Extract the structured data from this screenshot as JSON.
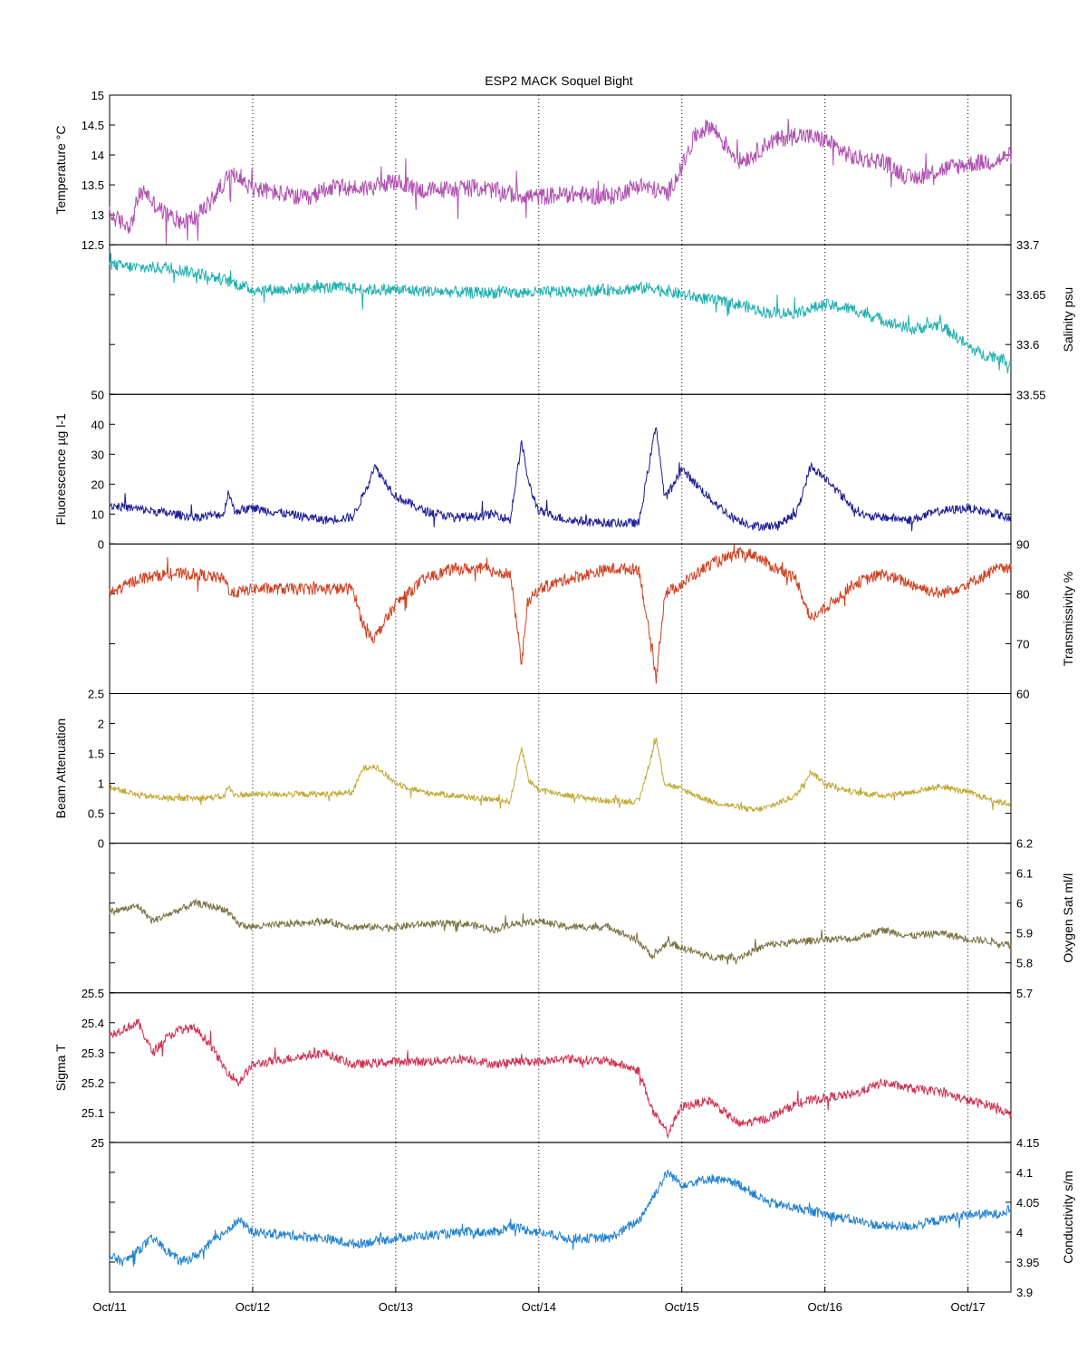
{
  "title": "ESP2 MACK  Soquel Bight",
  "x_axis": {
    "ticks": [
      "Oct/11",
      "Oct/12",
      "Oct/13",
      "Oct/14",
      "Oct/15",
      "Oct/16",
      "Oct/17"
    ],
    "range_days": [
      0,
      6.3
    ],
    "vertical_dotted_gridlines": true
  },
  "chart_data": [
    {
      "type": "line",
      "key": "temperature",
      "ylabel": "Temperature °C",
      "axis_side": "left",
      "ylim": [
        12.5,
        15
      ],
      "ticks": [
        12.5,
        13,
        13.5,
        14,
        14.5,
        15
      ],
      "color": "#b050b0",
      "x": [
        0,
        0.08,
        0.15,
        0.2,
        0.25,
        0.3,
        0.4,
        0.5,
        0.6,
        0.7,
        0.8,
        0.9,
        0.95,
        1.0,
        1.2,
        1.4,
        1.5,
        1.8,
        2.0,
        2.2,
        2.5,
        2.6,
        2.8,
        3.0,
        3.2,
        3.5,
        3.7,
        3.9,
        4.0,
        4.1,
        4.2,
        4.4,
        4.5,
        4.6,
        4.8,
        5.0,
        5.2,
        5.4,
        5.6,
        5.8,
        6.0,
        6.2,
        6.3
      ],
      "values": [
        13.0,
        12.88,
        12.82,
        13.3,
        13.4,
        13.2,
        13.0,
        12.9,
        12.95,
        13.2,
        13.55,
        13.7,
        13.5,
        13.45,
        13.35,
        13.25,
        13.45,
        13.45,
        13.55,
        13.4,
        13.45,
        13.45,
        13.35,
        13.3,
        13.35,
        13.3,
        13.5,
        13.35,
        13.8,
        14.35,
        14.5,
        13.9,
        14.0,
        14.2,
        14.35,
        14.25,
        13.95,
        13.9,
        13.6,
        13.75,
        13.85,
        13.9,
        14.0
      ],
      "noise": 0.15
    },
    {
      "type": "line",
      "key": "salinity",
      "ylabel": "Salinity psu",
      "axis_side": "right",
      "ylim": [
        33.55,
        33.7
      ],
      "ticks": [
        33.55,
        33.6,
        33.65,
        33.7
      ],
      "color": "#20b0b0",
      "x": [
        0,
        0.2,
        0.4,
        0.6,
        0.8,
        1.0,
        1.2,
        1.4,
        1.6,
        1.8,
        2.0,
        2.5,
        3.0,
        3.5,
        3.8,
        4.0,
        4.2,
        4.4,
        4.6,
        4.8,
        5.0,
        5.2,
        5.4,
        5.6,
        5.8,
        5.9,
        6.0,
        6.1,
        6.2,
        6.3
      ],
      "values": [
        33.68,
        33.677,
        33.677,
        33.672,
        33.665,
        33.655,
        33.655,
        33.657,
        33.657,
        33.655,
        33.655,
        33.652,
        33.652,
        33.655,
        33.657,
        33.65,
        33.645,
        33.64,
        33.632,
        33.632,
        33.64,
        33.635,
        33.625,
        33.615,
        33.62,
        33.61,
        33.598,
        33.59,
        33.588,
        33.582
      ],
      "noise": 0.006
    },
    {
      "type": "line",
      "key": "fluorescence",
      "ylabel": "Fluorescence µg l-1",
      "axis_side": "left",
      "ylim": [
        0,
        50
      ],
      "ticks": [
        0,
        10,
        20,
        30,
        40,
        50
      ],
      "color": "#1c1c96",
      "x": [
        0,
        0.3,
        0.6,
        0.8,
        0.83,
        0.87,
        1.0,
        1.5,
        1.7,
        1.77,
        1.85,
        2.0,
        2.2,
        2.4,
        2.5,
        2.7,
        2.8,
        2.88,
        2.93,
        3.0,
        3.2,
        3.5,
        3.7,
        3.82,
        3.88,
        4.0,
        4.2,
        4.35,
        4.5,
        4.65,
        4.8,
        4.9,
        5.0,
        5.2,
        5.3,
        5.4,
        5.6,
        5.8,
        6.0,
        6.2,
        6.3
      ],
      "values": [
        13,
        11,
        9,
        10,
        18,
        11,
        12,
        8,
        9,
        16,
        26,
        16,
        11,
        9,
        9,
        10,
        8,
        34,
        20,
        11,
        8,
        7,
        7,
        40,
        15,
        25,
        15,
        9,
        6,
        6,
        10,
        26,
        22,
        12,
        9,
        9,
        8,
        11,
        12,
        10,
        8
      ],
      "noise": 1.5
    },
    {
      "type": "line",
      "key": "transmissivity",
      "ylabel": "Transmissivity %",
      "axis_side": "right",
      "ylim": [
        60,
        90
      ],
      "ticks": [
        60,
        70,
        80,
        90
      ],
      "color": "#d04020",
      "x": [
        0,
        0.2,
        0.4,
        0.6,
        0.8,
        0.85,
        1.0,
        1.5,
        1.7,
        1.77,
        1.85,
        2.0,
        2.2,
        2.4,
        2.6,
        2.8,
        2.88,
        2.92,
        3.0,
        3.2,
        3.5,
        3.7,
        3.82,
        3.88,
        4.0,
        4.2,
        4.4,
        4.5,
        4.6,
        4.8,
        4.9,
        5.0,
        5.2,
        5.4,
        5.6,
        5.8,
        6.0,
        6.2,
        6.3
      ],
      "values": [
        80,
        83,
        84,
        84,
        83,
        80,
        81,
        81,
        81,
        74,
        71,
        78,
        83,
        85,
        85,
        84,
        66,
        78,
        81,
        83,
        85,
        85,
        63,
        80,
        82,
        86,
        88,
        88,
        86,
        83,
        75,
        77,
        82,
        84,
        82,
        80,
        82,
        85,
        85
      ],
      "noise": 1.2
    },
    {
      "type": "line",
      "key": "beam_attenuation",
      "ylabel": "Beam Attenuation",
      "axis_side": "left",
      "ylim": [
        0,
        2.5
      ],
      "ticks": [
        0,
        0.5,
        1,
        1.5,
        2,
        2.5
      ],
      "color": "#c0a830",
      "x": [
        0,
        0.2,
        0.4,
        0.6,
        0.8,
        0.83,
        0.87,
        1.0,
        1.5,
        1.7,
        1.77,
        1.85,
        2.0,
        2.2,
        2.4,
        2.6,
        2.8,
        2.88,
        2.93,
        3.0,
        3.2,
        3.5,
        3.7,
        3.82,
        3.88,
        4.0,
        4.2,
        4.4,
        4.5,
        4.6,
        4.8,
        4.9,
        5.0,
        5.2,
        5.4,
        5.6,
        5.8,
        6.0,
        6.2,
        6.3
      ],
      "values": [
        0.95,
        0.8,
        0.75,
        0.75,
        0.78,
        0.95,
        0.8,
        0.82,
        0.82,
        0.85,
        1.25,
        1.3,
        1.0,
        0.85,
        0.8,
        0.75,
        0.7,
        1.6,
        1.05,
        0.9,
        0.8,
        0.7,
        0.7,
        1.75,
        1.0,
        0.9,
        0.7,
        0.6,
        0.55,
        0.6,
        0.8,
        1.2,
        1.0,
        0.85,
        0.8,
        0.85,
        0.95,
        0.85,
        0.7,
        0.65
      ],
      "noise": 0.05
    },
    {
      "type": "line",
      "key": "oxygen_sat",
      "ylabel": "Oxygen Sat ml/l",
      "axis_side": "right",
      "ylim": [
        5.7,
        6.2
      ],
      "ticks": [
        5.7,
        5.8,
        5.9,
        6.0,
        6.1,
        6.2
      ],
      "color": "#7a7040",
      "x": [
        0,
        0.2,
        0.3,
        0.4,
        0.6,
        0.8,
        0.9,
        1.0,
        1.5,
        1.7,
        2.0,
        2.2,
        2.5,
        2.7,
        2.8,
        3.0,
        3.2,
        3.5,
        3.7,
        3.8,
        3.9,
        4.0,
        4.2,
        4.4,
        4.6,
        4.8,
        5.0,
        5.2,
        5.4,
        5.6,
        5.8,
        6.0,
        6.2,
        6.3
      ],
      "values": [
        5.97,
        5.99,
        5.94,
        5.96,
        6.0,
        5.98,
        5.93,
        5.92,
        5.94,
        5.92,
        5.92,
        5.93,
        5.93,
        5.91,
        5.93,
        5.94,
        5.92,
        5.92,
        5.87,
        5.82,
        5.87,
        5.85,
        5.82,
        5.82,
        5.86,
        5.87,
        5.88,
        5.88,
        5.91,
        5.89,
        5.9,
        5.88,
        5.87,
        5.86
      ],
      "noise": 0.012
    },
    {
      "type": "line",
      "key": "sigma_t",
      "ylabel": "Sigma T",
      "axis_side": "left",
      "ylim": [
        25,
        25.5
      ],
      "ticks": [
        25,
        25.1,
        25.2,
        25.3,
        25.4,
        25.5
      ],
      "color": "#d03050",
      "x": [
        0,
        0.2,
        0.3,
        0.4,
        0.5,
        0.6,
        0.7,
        0.8,
        0.9,
        1.0,
        1.5,
        1.7,
        2.0,
        2.2,
        2.5,
        2.7,
        2.8,
        3.0,
        3.2,
        3.5,
        3.7,
        3.8,
        3.9,
        4.0,
        4.2,
        4.4,
        4.6,
        4.8,
        5.0,
        5.2,
        5.4,
        5.6,
        5.8,
        6.0,
        6.2,
        6.3
      ],
      "values": [
        25.36,
        25.4,
        25.3,
        25.35,
        25.38,
        25.38,
        25.33,
        25.25,
        25.2,
        25.26,
        25.3,
        25.26,
        25.27,
        25.27,
        25.28,
        25.26,
        25.27,
        25.27,
        25.28,
        25.27,
        25.24,
        25.1,
        25.03,
        25.12,
        25.14,
        25.06,
        25.08,
        25.13,
        25.15,
        25.16,
        25.2,
        25.18,
        25.17,
        25.14,
        25.12,
        25.09
      ],
      "noise": 0.015
    },
    {
      "type": "line",
      "key": "conductivity",
      "ylabel": "Conductivity s/m",
      "axis_side": "right",
      "ylim": [
        3.9,
        4.15
      ],
      "ticks": [
        3.9,
        3.95,
        4.0,
        4.05,
        4.1,
        4.15
      ],
      "color": "#2080d0",
      "x": [
        0,
        0.1,
        0.2,
        0.3,
        0.4,
        0.5,
        0.6,
        0.7,
        0.8,
        0.9,
        1.0,
        1.5,
        1.7,
        2.0,
        2.5,
        2.7,
        2.8,
        3.0,
        3.2,
        3.5,
        3.7,
        3.8,
        3.9,
        4.0,
        4.2,
        4.4,
        4.6,
        4.8,
        5.0,
        5.2,
        5.4,
        5.6,
        5.8,
        6.0,
        6.2,
        6.3
      ],
      "values": [
        3.96,
        3.95,
        3.97,
        3.99,
        3.97,
        3.95,
        3.96,
        3.98,
        4.0,
        4.02,
        4.0,
        3.99,
        3.98,
        3.99,
        4.0,
        4.0,
        4.01,
        4.0,
        3.99,
        3.99,
        4.02,
        4.06,
        4.1,
        4.08,
        4.09,
        4.08,
        4.05,
        4.04,
        4.03,
        4.02,
        4.01,
        4.01,
        4.02,
        4.03,
        4.03,
        4.04
      ],
      "noise": 0.008
    }
  ]
}
